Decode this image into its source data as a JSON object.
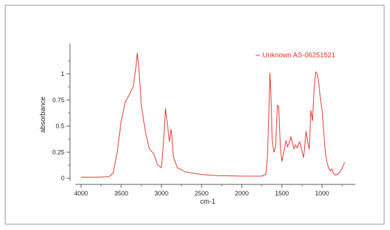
{
  "chart_data": {
    "type": "line",
    "xlabel": "cm-1",
    "ylabel": "absorbance",
    "xlim": [
      4000,
      700
    ],
    "x_reversed": true,
    "ylim": [
      -0.05,
      1.25
    ],
    "x_ticks": [
      4000,
      3500,
      3000,
      2500,
      2000,
      1500,
      1000
    ],
    "x_tick_labels": [
      "4000",
      "3500",
      "3000",
      "2500",
      "2000",
      "1500",
      "1000"
    ],
    "y_ticks": [
      0,
      0.25,
      0.5,
      0.75,
      1
    ],
    "y_tick_labels": [
      "0",
      "0.25",
      "0.5",
      "0.75",
      "1"
    ],
    "grid": false,
    "legend_position": "top-right",
    "series": [
      {
        "name": "Unknown AS-06251521",
        "color": "#e8302a",
        "points": [
          [
            4000,
            0.01
          ],
          [
            3800,
            0.01
          ],
          [
            3650,
            0.015
          ],
          [
            3600,
            0.05
          ],
          [
            3550,
            0.25
          ],
          [
            3500,
            0.55
          ],
          [
            3450,
            0.73
          ],
          [
            3400,
            0.8
          ],
          [
            3350,
            0.88
          ],
          [
            3320,
            1.05
          ],
          [
            3300,
            1.2
          ],
          [
            3280,
            1.05
          ],
          [
            3250,
            0.7
          ],
          [
            3200,
            0.45
          ],
          [
            3150,
            0.28
          ],
          [
            3100,
            0.24
          ],
          [
            3080,
            0.2
          ],
          [
            3050,
            0.13
          ],
          [
            3000,
            0.1
          ],
          [
            2970,
            0.38
          ],
          [
            2950,
            0.67
          ],
          [
            2930,
            0.55
          ],
          [
            2900,
            0.35
          ],
          [
            2880,
            0.47
          ],
          [
            2870,
            0.4
          ],
          [
            2850,
            0.2
          ],
          [
            2800,
            0.1
          ],
          [
            2700,
            0.06
          ],
          [
            2500,
            0.035
          ],
          [
            2300,
            0.025
          ],
          [
            2000,
            0.02
          ],
          [
            1800,
            0.02
          ],
          [
            1750,
            0.02
          ],
          [
            1700,
            0.04
          ],
          [
            1680,
            0.2
          ],
          [
            1660,
            0.7
          ],
          [
            1650,
            1.01
          ],
          [
            1640,
            0.85
          ],
          [
            1620,
            0.35
          ],
          [
            1600,
            0.25
          ],
          [
            1580,
            0.3
          ],
          [
            1555,
            0.7
          ],
          [
            1540,
            0.68
          ],
          [
            1520,
            0.3
          ],
          [
            1500,
            0.16
          ],
          [
            1470,
            0.28
          ],
          [
            1450,
            0.36
          ],
          [
            1430,
            0.3
          ],
          [
            1400,
            0.36
          ],
          [
            1390,
            0.4
          ],
          [
            1370,
            0.34
          ],
          [
            1350,
            0.28
          ],
          [
            1330,
            0.32
          ],
          [
            1310,
            0.29
          ],
          [
            1280,
            0.35
          ],
          [
            1260,
            0.3
          ],
          [
            1240,
            0.22
          ],
          [
            1230,
            0.2
          ],
          [
            1200,
            0.45
          ],
          [
            1180,
            0.35
          ],
          [
            1160,
            0.28
          ],
          [
            1140,
            0.65
          ],
          [
            1120,
            0.55
          ],
          [
            1100,
            0.85
          ],
          [
            1080,
            1.02
          ],
          [
            1060,
            1.0
          ],
          [
            1040,
            0.9
          ],
          [
            1020,
            0.75
          ],
          [
            1000,
            0.65
          ],
          [
            980,
            0.45
          ],
          [
            960,
            0.25
          ],
          [
            940,
            0.15
          ],
          [
            920,
            0.1
          ],
          [
            900,
            0.07
          ],
          [
            880,
            0.09
          ],
          [
            860,
            0.05
          ],
          [
            840,
            0.03
          ],
          [
            800,
            0.04
          ],
          [
            760,
            0.08
          ],
          [
            720,
            0.15
          ]
        ]
      }
    ]
  }
}
